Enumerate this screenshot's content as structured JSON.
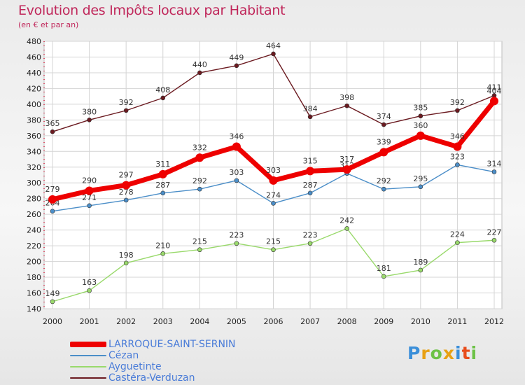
{
  "title": "Evolution des Impôts locaux par Habitant",
  "subtitle": "(en € et par an)",
  "logo": "Proxiti",
  "chart_data": {
    "type": "line",
    "title": "Evolution des Impôts locaux par Habitant",
    "subtitle": "(en € et par an)",
    "xlabel": "",
    "ylabel": "",
    "x": [
      2000,
      2001,
      2002,
      2003,
      2004,
      2005,
      2006,
      2007,
      2008,
      2009,
      2010,
      2011,
      2012
    ],
    "ylim": [
      140,
      480
    ],
    "yticks": [
      140,
      160,
      180,
      200,
      220,
      240,
      260,
      280,
      300,
      320,
      340,
      360,
      380,
      400,
      420,
      440,
      460,
      480
    ],
    "grid": true,
    "legend_position": "bottom-left",
    "series": [
      {
        "name": "LARROQUE-SAINT-SERNIN",
        "color": "#ee0000",
        "values": [
          279,
          290,
          297,
          311,
          332,
          346,
          303,
          315,
          317,
          339,
          360,
          346,
          404
        ]
      },
      {
        "name": "Cézan",
        "color": "#4b8ec8",
        "values": [
          264,
          271,
          278,
          287,
          292,
          303,
          274,
          287,
          312,
          292,
          295,
          323,
          314
        ]
      },
      {
        "name": "Ayguetinte",
        "color": "#99d96b",
        "values": [
          149,
          163,
          198,
          210,
          215,
          223,
          215,
          223,
          242,
          181,
          189,
          224,
          227
        ]
      },
      {
        "name": "Castéra-Verduzan",
        "color": "#6b1a20",
        "values": [
          365,
          380,
          392,
          408,
          440,
          449,
          464,
          384,
          398,
          374,
          385,
          392,
          411
        ]
      }
    ]
  }
}
